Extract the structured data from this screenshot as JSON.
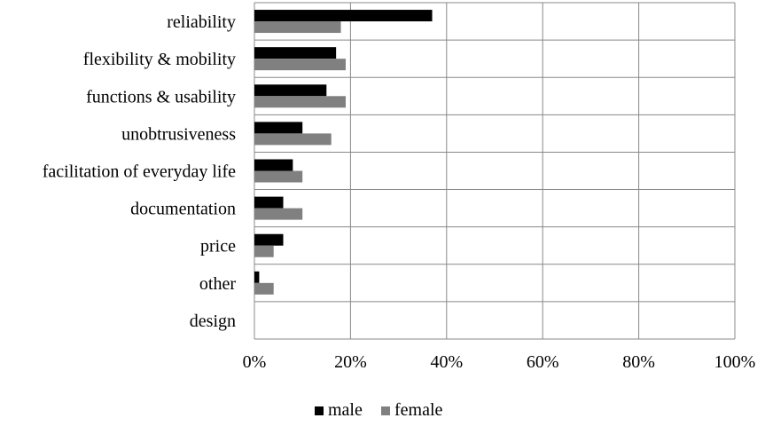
{
  "chart_data": {
    "type": "bar",
    "orientation": "horizontal",
    "categories": [
      "reliability",
      "flexibility & mobility",
      "functions & usability",
      "unobtrusiveness",
      "facilitation of everyday life",
      "documentation",
      "price",
      "other",
      "design"
    ],
    "series": [
      {
        "name": "male",
        "color": "#000000",
        "values": [
          37,
          17,
          15,
          10,
          8,
          6,
          6,
          1,
          0
        ]
      },
      {
        "name": "female",
        "color": "#808080",
        "values": [
          18,
          19,
          19,
          16,
          10,
          10,
          4,
          4,
          0
        ]
      }
    ],
    "x_ticks": [
      "0%",
      "20%",
      "40%",
      "60%",
      "80%",
      "100%"
    ],
    "xlim": [
      0,
      100
    ],
    "value_unit": "%",
    "grid": true,
    "legend_position": "bottom-center",
    "title": "",
    "xlabel": "",
    "ylabel": ""
  }
}
